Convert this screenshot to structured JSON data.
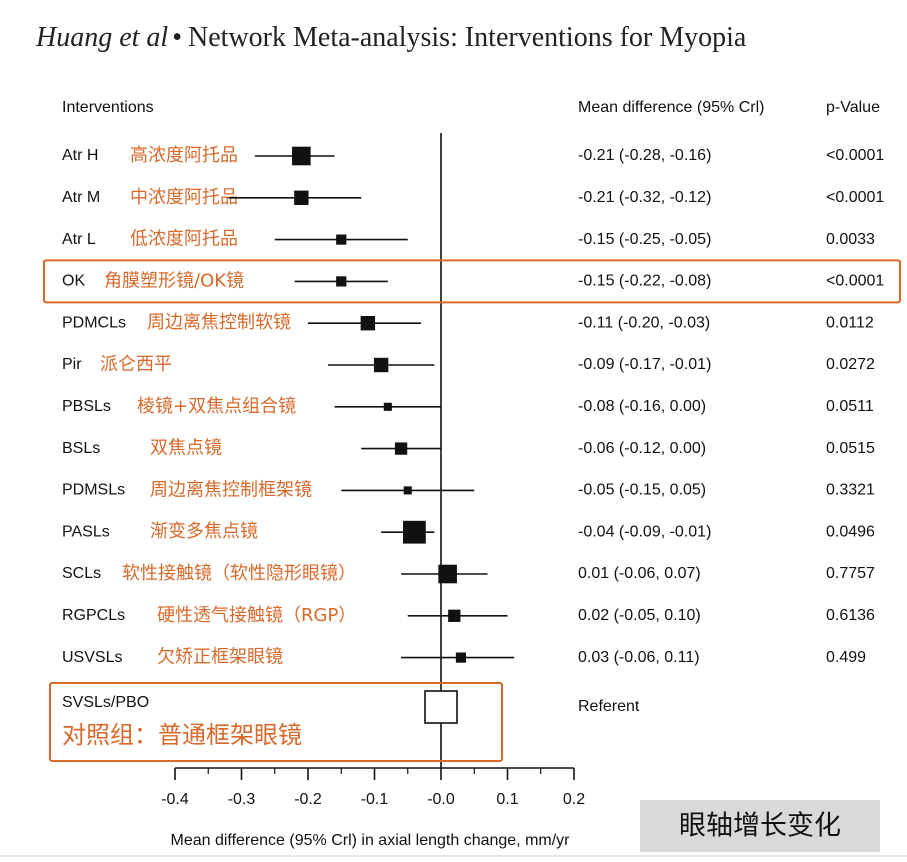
{
  "header": {
    "authors": "Huang et al",
    "separator": "•",
    "title": "Network Meta-analysis: Interventions for Myopia"
  },
  "chart_data": {
    "type": "forest",
    "columns": {
      "interventions": "Interventions",
      "estimate": "Mean difference (95% Crl)",
      "pvalue": "p-Value"
    },
    "rows": [
      {
        "label": "Atr H",
        "label_cn": "高浓度阿托品",
        "mean": -0.21,
        "lo": -0.28,
        "hi": -0.16,
        "ci_text": "-0.21 (-0.28, -0.16)",
        "p": "<0.0001",
        "weight": 3
      },
      {
        "label": "Atr M",
        "label_cn": "中浓度阿托品",
        "mean": -0.21,
        "lo": -0.32,
        "hi": -0.12,
        "ci_text": "-0.21 (-0.32, -0.12)",
        "p": "<0.0001",
        "weight": 2
      },
      {
        "label": "Atr L",
        "label_cn": "低浓度阿托品",
        "mean": -0.15,
        "lo": -0.25,
        "hi": -0.05,
        "ci_text": "-0.15 (-0.25, -0.05)",
        "p": "0.0033",
        "weight": 1
      },
      {
        "label": "OK",
        "label_cn": "角膜塑形镜/OK镜",
        "mean": -0.15,
        "lo": -0.22,
        "hi": -0.08,
        "ci_text": "-0.15 (-0.22, -0.08)",
        "p": "<0.0001",
        "weight": 1,
        "highlight": true
      },
      {
        "label": "PDMCLs",
        "label_cn": "周边离焦控制软镜",
        "mean": -0.11,
        "lo": -0.2,
        "hi": -0.03,
        "ci_text": "-0.11 (-0.20, -0.03)",
        "p": "0.0112",
        "weight": 2
      },
      {
        "label": "Pir",
        "label_cn": "派仑西平",
        "mean": -0.09,
        "lo": -0.17,
        "hi": -0.01,
        "ci_text": "-0.09 (-0.17, -0.01)",
        "p": "0.0272",
        "weight": 2
      },
      {
        "label": "PBSLs",
        "label_cn": "棱镜+双焦点组合镜",
        "mean": -0.08,
        "lo": -0.16,
        "hi": 0.0,
        "ci_text": "-0.08 (-0.16, 0.00)",
        "p": "0.0511",
        "weight": 0.5
      },
      {
        "label": "BSLs",
        "label_cn": "双焦点镜",
        "mean": -0.06,
        "lo": -0.12,
        "hi": 0.0,
        "ci_text": "-0.06 (-0.12, 0.00)",
        "p": "0.0515",
        "weight": 1.5
      },
      {
        "label": "PDMSLs",
        "label_cn": "周边离焦控制框架镜",
        "mean": -0.05,
        "lo": -0.15,
        "hi": 0.05,
        "ci_text": "-0.05 (-0.15, 0.05)",
        "p": "0.3321",
        "weight": 0.5
      },
      {
        "label": "PASLs",
        "label_cn": "渐变多焦点镜",
        "mean": -0.04,
        "lo": -0.09,
        "hi": -0.01,
        "ci_text": "-0.04 (-0.09, -0.01)",
        "p": "0.0496",
        "weight": 4
      },
      {
        "label": "SCLs",
        "label_cn": "软性接触镜（软性隐形眼镜）",
        "mean": 0.01,
        "lo": -0.06,
        "hi": 0.07,
        "ci_text": "0.01 (-0.06, 0.07)",
        "p": "0.7757",
        "weight": 3
      },
      {
        "label": "RGPCLs",
        "label_cn": "硬性透气接触镜（RGP）",
        "mean": 0.02,
        "lo": -0.05,
        "hi": 0.1,
        "ci_text": "0.02 (-0.05, 0.10)",
        "p": "0.6136",
        "weight": 1.5
      },
      {
        "label": "USVSLs",
        "label_cn": "欠矫正框架眼镜",
        "mean": 0.03,
        "lo": -0.06,
        "hi": 0.11,
        "ci_text": "0.03 (-0.06, 0.11)",
        "p": "0.499",
        "weight": 1
      }
    ],
    "reference": {
      "label": "SVSLs/PBO",
      "label_cn": "对照组：普通框架眼镜",
      "value": 0.0,
      "text": "Referent"
    },
    "x_axis": {
      "min": -0.4,
      "max": 0.2,
      "ticks": [
        -0.4,
        -0.3,
        -0.2,
        -0.1,
        0.0,
        0.1,
        0.2
      ],
      "tick_labels": [
        "-0.4",
        "-0.3",
        "-0.2",
        "-0.1",
        "-0.0",
        "0.1",
        "0.2"
      ],
      "label": "Mean difference (95% Crl) in axial length change, mm/yr"
    },
    "colors": {
      "annotation": "#D9692A",
      "box": "#D9692A",
      "marker": "#111111"
    },
    "badge": "眼轴增长变化"
  }
}
